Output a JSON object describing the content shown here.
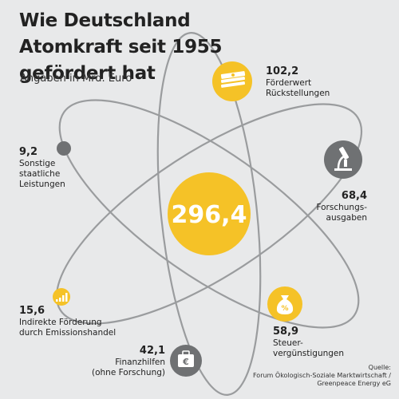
{
  "title": "Wie Deutschland Atomkraft seit 1955 gefördert hat",
  "subtitle": "Angaben in Mrd. Euro",
  "total": "296,4",
  "source": "Quelle:\nForum Ökologisch-Soziale Marktwirtschaft /\nGreenpeace Energy eG",
  "colors": {
    "background": "#e8e9ea",
    "yellow": "#f5c227",
    "grey": "#6f7173",
    "orbit": "#9a9c9e"
  },
  "chart_data": {
    "type": "pie",
    "title": "Wie Deutschland Atomkraft seit 1955 gefördert hat",
    "unit": "Mrd. Euro",
    "total": 296.4,
    "categories": [
      "Förderwert Rückstellungen",
      "Forschungsausgaben",
      "Steuervergünstigungen",
      "Finanzhilfen (ohne Forschung)",
      "Indirekte Förderung durch Emissionshandel",
      "Sonstige staatliche Leistungen"
    ],
    "values": [
      102.2,
      68.4,
      58.9,
      42.1,
      15.6,
      9.2
    ]
  },
  "items": [
    {
      "value": "102,2",
      "label": "Förderwert\nRückstellungen",
      "icon": "money-stack-icon"
    },
    {
      "value": "68,4",
      "label": "Forschungs-\nausgaben",
      "icon": "microscope-icon"
    },
    {
      "value": "58,9",
      "label": "Steuer-\nvergünstigungen",
      "icon": "money-bag-percent-icon"
    },
    {
      "value": "42,1",
      "label": "Finanzhilfen\n(ohne Forschung)",
      "icon": "euro-briefcase-icon"
    },
    {
      "value": "15,6",
      "label": "Indirekte Förderung\ndurch Emissionshandel",
      "icon": "bar-chart-icon"
    },
    {
      "value": "9,2",
      "label": "Sonstige\nstaatliche\nLeistungen",
      "icon": "dot-icon"
    }
  ]
}
